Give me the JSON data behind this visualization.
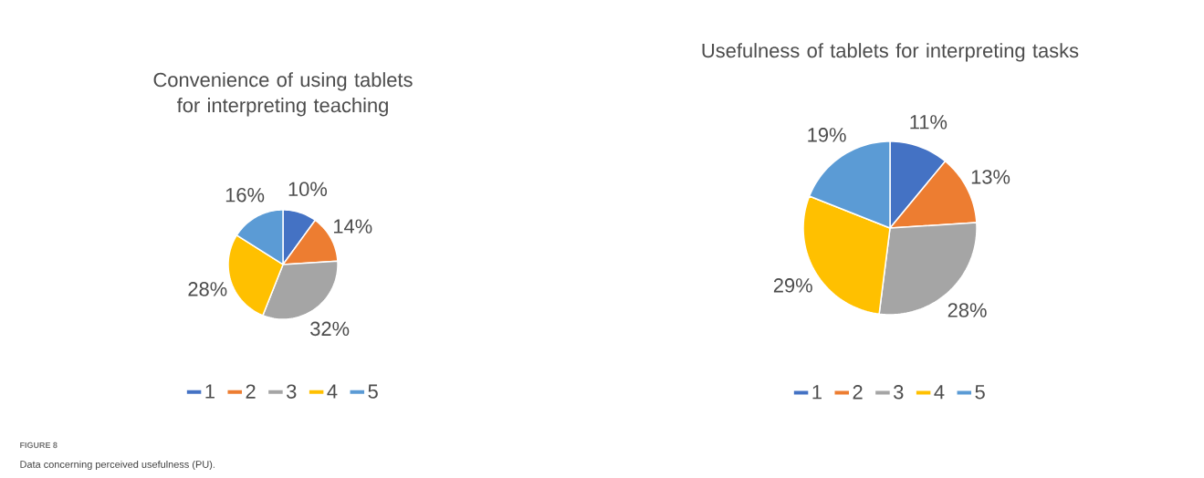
{
  "chart_data": [
    {
      "type": "pie",
      "title": "Convenience of using tablets for interpreting teaching",
      "categories": [
        "1",
        "2",
        "3",
        "4",
        "5"
      ],
      "values": [
        10,
        14,
        32,
        28,
        16
      ],
      "value_labels": [
        "10%",
        "14%",
        "32%",
        "28%",
        "16%"
      ],
      "colors": [
        "#4472c4",
        "#ed7d31",
        "#a5a5a5",
        "#ffc000",
        "#5b9bd5"
      ],
      "legend": "bottom",
      "annotations": [
        "FIGURE 8",
        "Data concerning perceived usefulness (PU)."
      ]
    },
    {
      "type": "pie",
      "title": "Usefulness of tablets for interpreting tasks",
      "categories": [
        "1",
        "2",
        "3",
        "4",
        "5"
      ],
      "values": [
        11,
        13,
        28,
        29,
        19
      ],
      "value_labels": [
        "11%",
        "13%",
        "28%",
        "29%",
        "19%"
      ],
      "colors": [
        "#4472c4",
        "#ed7d31",
        "#a5a5a5",
        "#ffc000",
        "#5b9bd5"
      ],
      "legend": "bottom"
    }
  ]
}
